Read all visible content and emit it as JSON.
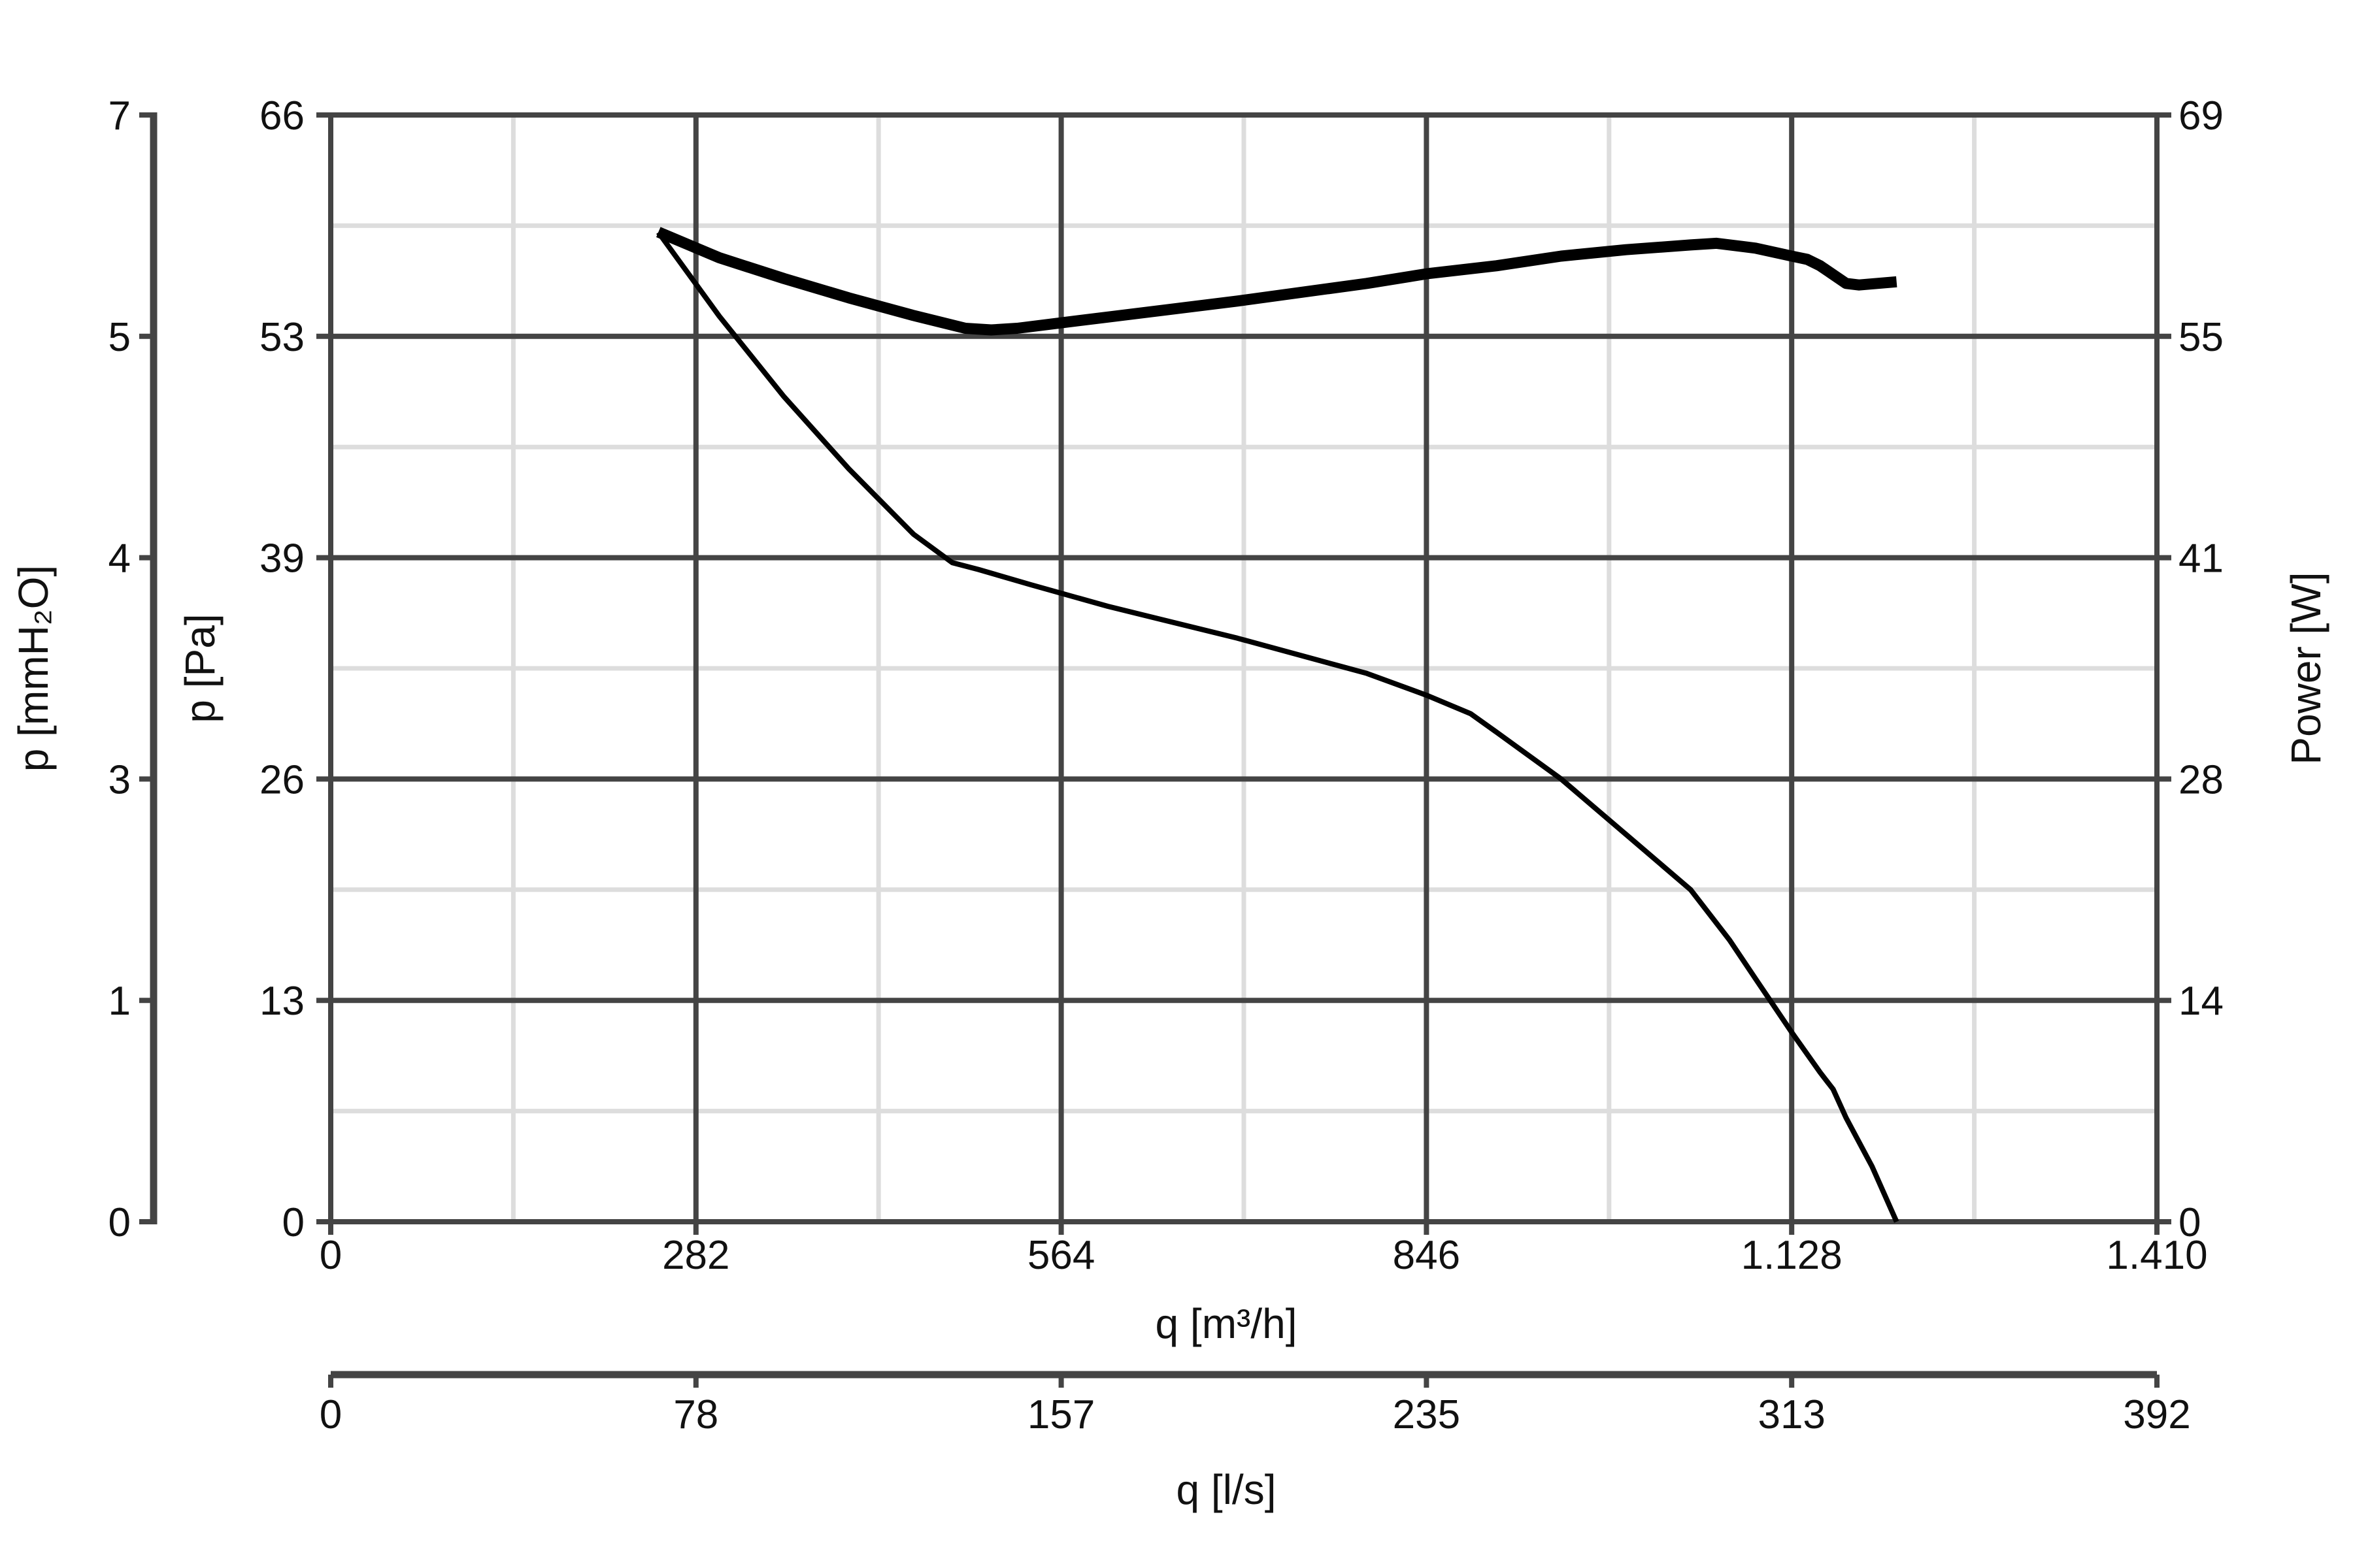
{
  "chart_data": {
    "type": "line",
    "grid": true,
    "colors": {
      "line": "#000000",
      "axis": "#444444",
      "grid_major": "#444444",
      "grid_minor": "#dddddd"
    },
    "axes": {
      "x_main": {
        "label": "q [m³/h]",
        "range": [
          0,
          1410
        ],
        "ticks": [
          0,
          282,
          564,
          846,
          1128,
          1410
        ],
        "tick_labels": [
          "0",
          "282",
          "564",
          "846",
          "1.128",
          "1.410"
        ]
      },
      "x_secondary": {
        "label": "q [l/s]",
        "range": [
          0,
          392
        ],
        "tick_labels": [
          "0",
          "78",
          "157",
          "235",
          "313",
          "392"
        ]
      },
      "y_main": {
        "label": "p [Pa]",
        "range": [
          0,
          66
        ],
        "ticks": [
          0,
          13,
          26,
          39,
          53,
          66
        ],
        "tick_labels": [
          "0",
          "13",
          "26",
          "39",
          "53",
          "66"
        ]
      },
      "y_mmH2O": {
        "label": "p [mmH₂O]",
        "range": [
          0,
          7
        ],
        "tick_labels": [
          "0",
          "1",
          "3",
          "4",
          "5",
          "7"
        ]
      },
      "y_power": {
        "label": "Power [W]",
        "range": [
          0,
          69
        ],
        "tick_labels": [
          "0",
          "14",
          "28",
          "41",
          "55",
          "69"
        ]
      }
    },
    "series": [
      {
        "axis": "y_main",
        "stroke": "thin",
        "x": [
          253,
          300,
          350,
          400,
          450,
          480,
          500,
          540,
          600,
          700,
          800,
          846,
          880,
          900,
          950,
          1000,
          1050,
          1080,
          1100,
          1128,
          1150,
          1160,
          1170,
          1190,
          1209
        ],
        "y": [
          59.0,
          54.0,
          49.2,
          44.9,
          41.0,
          39.3,
          38.9,
          38.0,
          36.7,
          34.8,
          32.7,
          31.4,
          30.3,
          29.2,
          26.4,
          23.1,
          19.8,
          16.8,
          14.5,
          11.3,
          8.9,
          7.9,
          6.2,
          3.3,
          0.0
        ]
      },
      {
        "axis": "y_power",
        "stroke": "thick",
        "x": [
          253,
          300,
          350,
          400,
          450,
          490,
          510,
          530,
          600,
          700,
          800,
          846,
          900,
          950,
          1000,
          1050,
          1070,
          1100,
          1128,
          1140,
          1150,
          1170,
          1180,
          1209
        ],
        "y": [
          61.7,
          60.1,
          58.8,
          57.6,
          56.5,
          55.7,
          55.6,
          55.7,
          56.4,
          57.4,
          58.5,
          59.1,
          59.6,
          60.2,
          60.6,
          60.9,
          61.0,
          60.7,
          60.2,
          60.0,
          59.6,
          58.5,
          58.4,
          58.6
        ]
      }
    ]
  }
}
